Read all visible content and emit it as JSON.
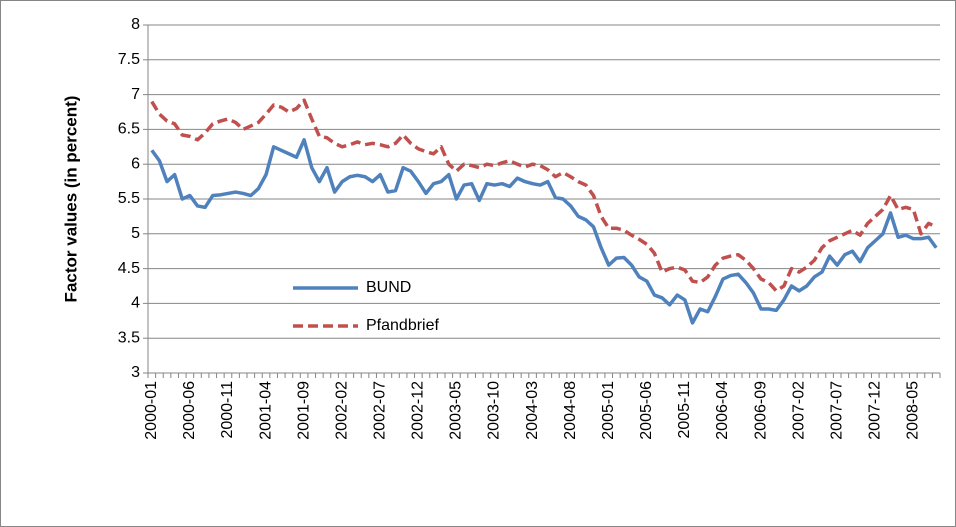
{
  "chart_data": {
    "type": "line",
    "y_label": "Factor values (in percent)",
    "categories": [
      "2000-01",
      null,
      null,
      null,
      null,
      "2000-06",
      null,
      null,
      null,
      null,
      "2000-11",
      null,
      null,
      null,
      null,
      "2001-04",
      null,
      null,
      null,
      null,
      "2001-09",
      null,
      null,
      null,
      null,
      "2002-02",
      null,
      null,
      null,
      null,
      "2002-07",
      null,
      null,
      null,
      null,
      "2002-12",
      null,
      null,
      null,
      null,
      "2003-05",
      null,
      null,
      null,
      null,
      "2003-10",
      null,
      null,
      null,
      null,
      "2004-03",
      null,
      null,
      null,
      null,
      "2004-08",
      null,
      null,
      null,
      null,
      "2005-01",
      null,
      null,
      null,
      null,
      "2005-06",
      null,
      null,
      null,
      null,
      "2005-11",
      null,
      null,
      null,
      null,
      "2006-04",
      null,
      null,
      null,
      null,
      "2006-09",
      null,
      null,
      null,
      null,
      "2007-02",
      null,
      null,
      null,
      null,
      "2007-07",
      null,
      null,
      null,
      null,
      "2007-12",
      null,
      null,
      null,
      null,
      "2008-05",
      null,
      null,
      null
    ],
    "series": [
      {
        "name": "BUND",
        "color": "#4f81bd",
        "dash": false,
        "values": [
          6.2,
          6.05,
          5.75,
          5.85,
          5.5,
          5.55,
          5.4,
          5.38,
          5.55,
          5.56,
          5.58,
          5.6,
          5.58,
          5.55,
          5.65,
          5.85,
          6.25,
          6.2,
          6.15,
          6.1,
          6.35,
          5.95,
          5.75,
          5.95,
          5.6,
          5.75,
          5.82,
          5.84,
          5.82,
          5.75,
          5.85,
          5.6,
          5.62,
          5.95,
          5.9,
          5.75,
          5.58,
          5.72,
          5.75,
          5.85,
          5.5,
          5.7,
          5.72,
          5.48,
          5.72,
          5.7,
          5.72,
          5.68,
          5.8,
          5.75,
          5.72,
          5.7,
          5.75,
          5.52,
          5.5,
          5.4,
          5.25,
          5.2,
          5.1,
          4.8,
          4.55,
          4.65,
          4.66,
          4.55,
          4.38,
          4.32,
          4.12,
          4.08,
          3.98,
          4.12,
          4.05,
          3.72,
          3.92,
          3.88,
          4.1,
          4.35,
          4.4,
          4.42,
          4.3,
          4.15,
          3.92,
          3.92,
          3.9,
          4.05,
          4.25,
          4.18,
          4.25,
          4.38,
          4.45,
          4.68,
          4.55,
          4.7,
          4.75,
          4.6,
          4.8,
          4.9,
          5.0,
          5.3,
          4.95,
          4.98,
          4.93,
          4.93,
          4.95,
          4.8
        ]
      },
      {
        "name": "Pfandbrief",
        "color": "#c0504d",
        "dash": true,
        "values": [
          6.9,
          6.72,
          6.62,
          6.58,
          6.42,
          6.4,
          6.35,
          6.45,
          6.58,
          6.62,
          6.65,
          6.6,
          6.5,
          6.55,
          6.6,
          6.72,
          6.85,
          6.82,
          6.75,
          6.8,
          6.92,
          6.65,
          6.4,
          6.38,
          6.3,
          6.25,
          6.28,
          6.32,
          6.28,
          6.3,
          6.28,
          6.25,
          6.3,
          6.42,
          6.3,
          6.22,
          6.18,
          6.15,
          6.25,
          6.0,
          5.9,
          6.0,
          5.98,
          5.95,
          6.0,
          5.98,
          6.02,
          6.05,
          6.0,
          5.96,
          6.0,
          5.98,
          5.92,
          5.82,
          5.88,
          5.82,
          5.75,
          5.7,
          5.55,
          5.25,
          5.08,
          5.08,
          5.05,
          4.98,
          4.92,
          4.85,
          4.72,
          4.45,
          4.5,
          4.52,
          4.48,
          4.32,
          4.3,
          4.38,
          4.55,
          4.65,
          4.68,
          4.7,
          4.62,
          4.5,
          4.35,
          4.3,
          4.18,
          4.25,
          4.5,
          4.45,
          4.52,
          4.62,
          4.8,
          4.9,
          4.95,
          5.0,
          5.05,
          4.98,
          5.15,
          5.25,
          5.35,
          5.55,
          5.35,
          5.38,
          5.35,
          5.0,
          5.15,
          5.1
        ]
      }
    ],
    "ylim": [
      3,
      8
    ],
    "yticks": [
      3,
      3.5,
      4,
      4.5,
      5,
      5.5,
      6,
      6.5,
      7,
      7.5,
      8
    ],
    "grid": true
  }
}
